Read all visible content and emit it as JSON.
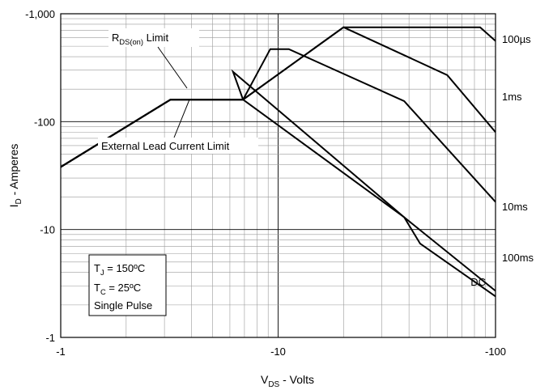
{
  "chart_data": {
    "type": "line",
    "xlabel": {
      "main": "V",
      "sub": "DS",
      "rest": " - Volts"
    },
    "ylabel": {
      "main": "I",
      "sub": "D",
      "rest": " - Amperes"
    },
    "x_scale": "log",
    "y_scale": "log",
    "xlim": [
      -1,
      -100
    ],
    "ylim": [
      -1,
      -1000
    ],
    "x_ticks": [
      {
        "value": -1,
        "label": "-1"
      },
      {
        "value": -10,
        "label": "-10"
      },
      {
        "value": -100,
        "label": "-100"
      }
    ],
    "y_ticks": [
      {
        "value": -1,
        "label": "-1"
      },
      {
        "value": -10,
        "label": "-10"
      },
      {
        "value": -100,
        "label": "-100"
      },
      {
        "value": -1000,
        "label": "-1,000"
      }
    ],
    "grid": true,
    "series": [
      {
        "name": "100µs",
        "points": [
          [
            -1,
            -38
          ],
          [
            -3.2,
            -160
          ],
          [
            -4.6,
            -160
          ],
          [
            -6.9,
            -160
          ],
          [
            -20,
            -750
          ],
          [
            -85,
            -750
          ],
          [
            -100,
            -560
          ]
        ]
      },
      {
        "name": "1ms",
        "points": [
          [
            -1,
            -38
          ],
          [
            -3.2,
            -160
          ],
          [
            -6.9,
            -160
          ],
          [
            -20,
            -750
          ],
          [
            -60,
            -270
          ],
          [
            -100,
            -80
          ]
        ]
      },
      {
        "name": "10ms",
        "points": [
          [
            -1,
            -38
          ],
          [
            -3.2,
            -160
          ],
          [
            -6.9,
            -160
          ],
          [
            -9.2,
            -470
          ],
          [
            -11.2,
            -470
          ],
          [
            -38,
            -155
          ],
          [
            -100,
            -18
          ]
        ]
      },
      {
        "name": "100ms",
        "points": [
          [
            -1,
            -38
          ],
          [
            -3.2,
            -160
          ],
          [
            -6.9,
            -160
          ],
          [
            -38,
            -13
          ],
          [
            -100,
            -2.7
          ]
        ]
      },
      {
        "name": "DC",
        "points": [
          [
            -1,
            -38
          ],
          [
            -3.2,
            -160
          ],
          [
            -6.9,
            -160
          ],
          [
            -6.2,
            -290
          ],
          [
            -38,
            -13
          ],
          [
            -45,
            -7.4
          ],
          [
            -100,
            -2.4
          ]
        ]
      }
    ],
    "annotations": [
      {
        "main": "R",
        "sub": "DS(on)",
        "rest": " Limit"
      },
      {
        "main": "External Lead Current Limit",
        "sub": "",
        "rest": ""
      }
    ],
    "conditions": [
      {
        "main": "T",
        "sub": "J",
        "rest": " = 150ºC"
      },
      {
        "main": "T",
        "sub": "C",
        "rest": " = 25ºC"
      },
      {
        "main": "Single Pulse",
        "sub": "",
        "rest": ""
      }
    ]
  }
}
